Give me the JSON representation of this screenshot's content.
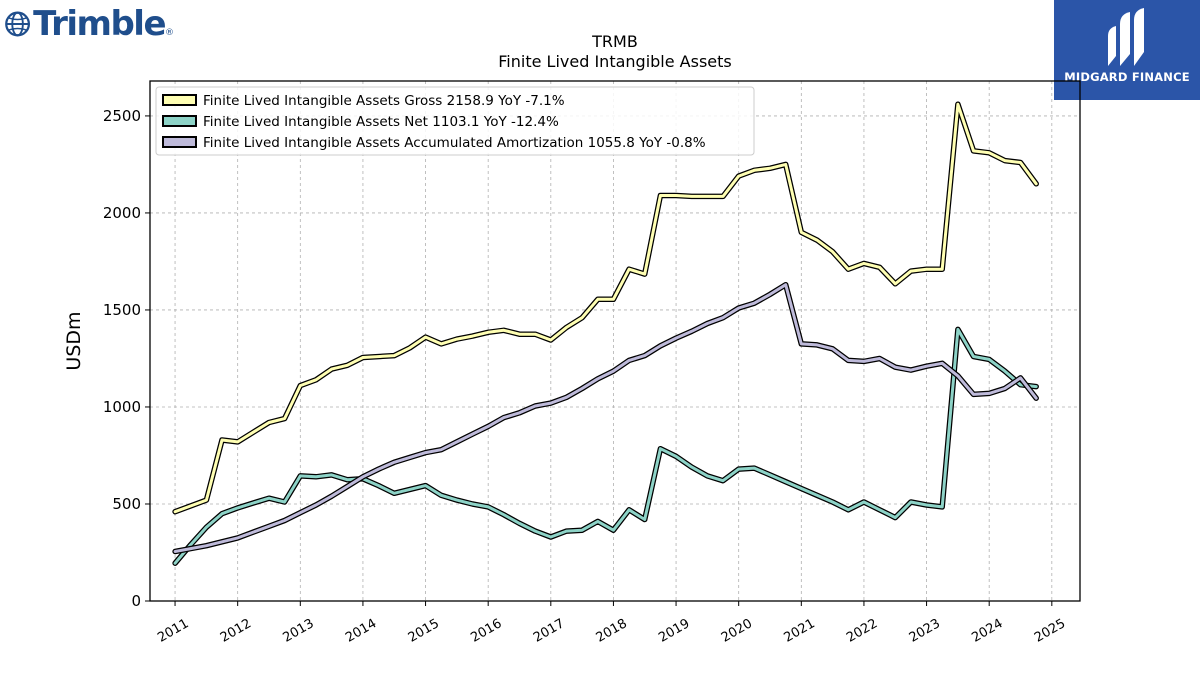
{
  "brand": {
    "left_logo": "Trimble",
    "right_logo": "MIDGARD FINANCE",
    "accent": "#2b55a8",
    "left_color": "#1f4e8c"
  },
  "chart_data": {
    "type": "line",
    "title": "TRMB",
    "subtitle": "Finite Lived Intangible Assets",
    "ylabel": "USDm",
    "xlabel": "",
    "ylim": [
      0,
      2680
    ],
    "xlim": [
      2010.6,
      2025.45
    ],
    "yticks": [
      0,
      500,
      1000,
      1500,
      2000,
      2500
    ],
    "xticks": [
      2011,
      2012,
      2013,
      2014,
      2015,
      2016,
      2017,
      2018,
      2019,
      2020,
      2021,
      2022,
      2023,
      2024,
      2025
    ],
    "grid": true,
    "legend_position": "top-left",
    "series": [
      {
        "name": "Finite Lived Intangible Assets Gross  2158.9 YoY -7.1%",
        "color": "#ffffb3",
        "points": [
          [
            2011.0,
            460
          ],
          [
            2011.5,
            520
          ],
          [
            2011.75,
            830
          ],
          [
            2012.0,
            820
          ],
          [
            2012.25,
            870
          ],
          [
            2012.5,
            920
          ],
          [
            2012.75,
            940
          ],
          [
            2013.0,
            1110
          ],
          [
            2013.25,
            1140
          ],
          [
            2013.5,
            1195
          ],
          [
            2013.75,
            1215
          ],
          [
            2014.0,
            1255
          ],
          [
            2014.5,
            1265
          ],
          [
            2014.75,
            1305
          ],
          [
            2015.0,
            1360
          ],
          [
            2015.25,
            1325
          ],
          [
            2015.5,
            1350
          ],
          [
            2015.75,
            1365
          ],
          [
            2016.0,
            1385
          ],
          [
            2016.25,
            1395
          ],
          [
            2016.5,
            1375
          ],
          [
            2016.75,
            1375
          ],
          [
            2017.0,
            1345
          ],
          [
            2017.25,
            1410
          ],
          [
            2017.5,
            1460
          ],
          [
            2017.75,
            1555
          ],
          [
            2018.0,
            1555
          ],
          [
            2018.25,
            1710
          ],
          [
            2018.5,
            1685
          ],
          [
            2018.75,
            2090
          ],
          [
            2019.0,
            2090
          ],
          [
            2019.25,
            2085
          ],
          [
            2019.5,
            2085
          ],
          [
            2019.75,
            2085
          ],
          [
            2020.0,
            2190
          ],
          [
            2020.25,
            2220
          ],
          [
            2020.5,
            2230
          ],
          [
            2020.75,
            2250
          ],
          [
            2021.0,
            1900
          ],
          [
            2021.25,
            1860
          ],
          [
            2021.5,
            1800
          ],
          [
            2021.75,
            1710
          ],
          [
            2022.0,
            1740
          ],
          [
            2022.25,
            1720
          ],
          [
            2022.5,
            1635
          ],
          [
            2022.75,
            1700
          ],
          [
            2023.0,
            1710
          ],
          [
            2023.25,
            1710
          ],
          [
            2023.5,
            2560
          ],
          [
            2023.75,
            2320
          ],
          [
            2024.0,
            2310
          ],
          [
            2024.25,
            2270
          ],
          [
            2024.5,
            2260
          ],
          [
            2024.75,
            2150
          ]
        ]
      },
      {
        "name": "Finite Lived Intangible Assets Net  1103.1 YoY -12.4%",
        "color": "#8dd3c7",
        "points": [
          [
            2011.0,
            195
          ],
          [
            2011.25,
            290
          ],
          [
            2011.5,
            380
          ],
          [
            2011.75,
            450
          ],
          [
            2012.0,
            480
          ],
          [
            2012.25,
            505
          ],
          [
            2012.5,
            530
          ],
          [
            2012.75,
            510
          ],
          [
            2013.0,
            645
          ],
          [
            2013.25,
            640
          ],
          [
            2013.5,
            650
          ],
          [
            2013.75,
            625
          ],
          [
            2014.0,
            630
          ],
          [
            2014.25,
            595
          ],
          [
            2014.5,
            555
          ],
          [
            2014.75,
            575
          ],
          [
            2015.0,
            595
          ],
          [
            2015.25,
            545
          ],
          [
            2015.5,
            520
          ],
          [
            2015.75,
            500
          ],
          [
            2016.0,
            485
          ],
          [
            2016.25,
            445
          ],
          [
            2016.5,
            400
          ],
          [
            2016.75,
            360
          ],
          [
            2017.0,
            330
          ],
          [
            2017.25,
            360
          ],
          [
            2017.5,
            365
          ],
          [
            2017.75,
            410
          ],
          [
            2018.0,
            365
          ],
          [
            2018.25,
            470
          ],
          [
            2018.5,
            420
          ],
          [
            2018.75,
            785
          ],
          [
            2019.0,
            745
          ],
          [
            2019.25,
            690
          ],
          [
            2019.5,
            645
          ],
          [
            2019.75,
            620
          ],
          [
            2020.0,
            680
          ],
          [
            2020.25,
            685
          ],
          [
            2020.5,
            650
          ],
          [
            2020.75,
            615
          ],
          [
            2021.0,
            580
          ],
          [
            2021.25,
            545
          ],
          [
            2021.5,
            510
          ],
          [
            2021.75,
            470
          ],
          [
            2022.0,
            510
          ],
          [
            2022.25,
            470
          ],
          [
            2022.5,
            430
          ],
          [
            2022.75,
            510
          ],
          [
            2023.0,
            495
          ],
          [
            2023.25,
            485
          ],
          [
            2023.5,
            1400
          ],
          [
            2023.75,
            1260
          ],
          [
            2024.0,
            1245
          ],
          [
            2024.25,
            1185
          ],
          [
            2024.5,
            1115
          ],
          [
            2024.75,
            1105
          ]
        ]
      },
      {
        "name": "Finite Lived Intangible Assets Accumulated Amortization  1055.8 YoY -0.8%",
        "color": "#bebada",
        "points": [
          [
            2011.0,
            255
          ],
          [
            2011.25,
            270
          ],
          [
            2011.5,
            285
          ],
          [
            2011.75,
            305
          ],
          [
            2012.0,
            325
          ],
          [
            2012.25,
            355
          ],
          [
            2012.5,
            385
          ],
          [
            2012.75,
            415
          ],
          [
            2013.0,
            455
          ],
          [
            2013.25,
            495
          ],
          [
            2013.5,
            540
          ],
          [
            2013.75,
            590
          ],
          [
            2014.0,
            640
          ],
          [
            2014.25,
            680
          ],
          [
            2014.5,
            715
          ],
          [
            2014.75,
            740
          ],
          [
            2015.0,
            765
          ],
          [
            2015.25,
            780
          ],
          [
            2015.5,
            820
          ],
          [
            2015.75,
            860
          ],
          [
            2016.0,
            900
          ],
          [
            2016.25,
            945
          ],
          [
            2016.5,
            970
          ],
          [
            2016.75,
            1005
          ],
          [
            2017.0,
            1020
          ],
          [
            2017.25,
            1050
          ],
          [
            2017.5,
            1095
          ],
          [
            2017.75,
            1145
          ],
          [
            2018.0,
            1185
          ],
          [
            2018.25,
            1240
          ],
          [
            2018.5,
            1265
          ],
          [
            2018.75,
            1315
          ],
          [
            2019.0,
            1355
          ],
          [
            2019.25,
            1390
          ],
          [
            2019.5,
            1430
          ],
          [
            2019.75,
            1460
          ],
          [
            2020.0,
            1510
          ],
          [
            2020.25,
            1535
          ],
          [
            2020.5,
            1580
          ],
          [
            2020.75,
            1630
          ],
          [
            2021.0,
            1325
          ],
          [
            2021.25,
            1320
          ],
          [
            2021.5,
            1300
          ],
          [
            2021.75,
            1240
          ],
          [
            2022.0,
            1235
          ],
          [
            2022.25,
            1250
          ],
          [
            2022.5,
            1205
          ],
          [
            2022.75,
            1190
          ],
          [
            2023.0,
            1210
          ],
          [
            2023.25,
            1225
          ],
          [
            2023.5,
            1160
          ],
          [
            2023.75,
            1065
          ],
          [
            2024.0,
            1070
          ],
          [
            2024.25,
            1095
          ],
          [
            2024.5,
            1150
          ],
          [
            2024.75,
            1045
          ]
        ]
      }
    ]
  }
}
